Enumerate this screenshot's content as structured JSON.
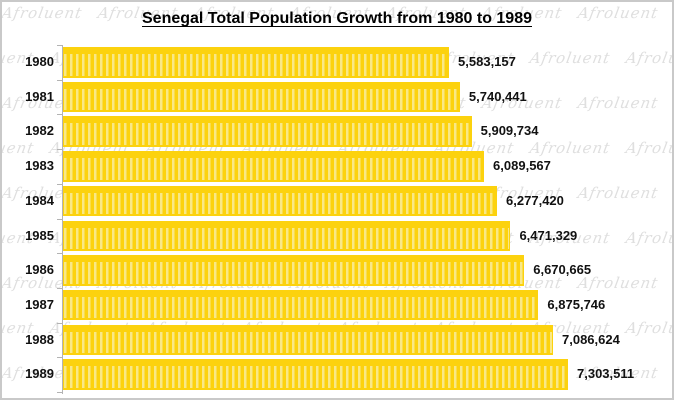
{
  "watermark_text": "Afroluent",
  "chart_data": {
    "type": "bar",
    "orientation": "horizontal",
    "title": "Senegal Total Population Growth from 1980 to 1989",
    "categories": [
      "1980",
      "1981",
      "1982",
      "1983",
      "1984",
      "1985",
      "1986",
      "1987",
      "1988",
      "1989"
    ],
    "values": [
      5583157,
      5740441,
      5909734,
      6089567,
      6277420,
      6471329,
      6670665,
      6875746,
      7086624,
      7303511
    ],
    "value_labels": [
      "5,583,157",
      "5,740,441",
      "5,909,734",
      "6,089,567",
      "6,277,420",
      "6,471,329",
      "6,670,665",
      "6,875,746",
      "7,086,624",
      "7,303,511"
    ],
    "xlabel": "",
    "ylabel": "",
    "xlim": [
      0,
      7303511
    ],
    "grid": false,
    "legend": false,
    "bar_color": "#FCD20E",
    "bar_stripe_color": "#F9E887",
    "axis_color": "#B3B3B3",
    "label_color": "#111111",
    "watermark_color": "#DFDFDF",
    "title_color": "#000000"
  }
}
